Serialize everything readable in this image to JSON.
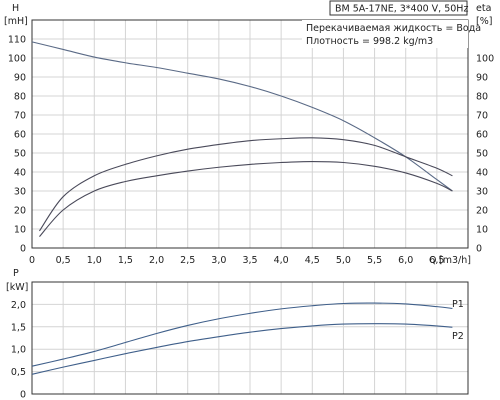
{
  "chart_data": [
    {
      "type": "line",
      "title": "BM 5A-17NE, 3*400 V, 50Hz",
      "info": [
        "Перекачиваемая жидкость = Вода",
        "Плотность = 998.2 kg/m3"
      ],
      "left_axis": {
        "name": "H",
        "unit": "[mH]",
        "ylim": [
          0,
          120
        ],
        "ticks": [
          0,
          10,
          20,
          30,
          40,
          50,
          60,
          70,
          80,
          90,
          100,
          110
        ]
      },
      "right_axis": {
        "name": "eta",
        "unit": "[%]",
        "ylim": [
          0,
          120
        ],
        "ticks": [
          0,
          10,
          20,
          30,
          40,
          50,
          60,
          70,
          80,
          90,
          100
        ]
      },
      "x_axis": {
        "name": "Q",
        "unit": "[m3/h]",
        "xlim": [
          0,
          7.0
        ],
        "tick_values": [
          0,
          0.5,
          1.0,
          1.5,
          2.0,
          2.5,
          3.0,
          3.5,
          4.0,
          4.5,
          5.0,
          5.5,
          6.0,
          6.5
        ],
        "tick_labels": [
          "0",
          "0,5",
          "1,0",
          "1,5",
          "2,0",
          "2,5",
          "3,0",
          "3,5",
          "4,0",
          "4,5",
          "5,0",
          "5,5",
          "6,0",
          "6,5"
        ]
      },
      "grid": true,
      "series": [
        {
          "id": "head",
          "color": "#5a6a86",
          "x": [
            0,
            0.5,
            1.0,
            1.5,
            2.0,
            2.5,
            3.0,
            3.5,
            4.0,
            4.5,
            5.0,
            5.5,
            6.0,
            6.5,
            6.75
          ],
          "y": [
            108.5,
            104.5,
            100.5,
            97.5,
            95,
            92,
            89,
            85,
            80,
            74,
            67,
            58,
            48,
            36,
            30
          ]
        },
        {
          "id": "eta-upper",
          "color": "#4a4a5a",
          "x": [
            0.12,
            0.5,
            1.0,
            1.5,
            2.0,
            2.5,
            3.0,
            3.5,
            4.0,
            4.5,
            5.0,
            5.5,
            6.0,
            6.5,
            6.75
          ],
          "y": [
            9,
            27,
            38,
            44,
            48.5,
            52,
            54.5,
            56.5,
            57.5,
            58,
            57,
            54,
            48,
            42,
            38
          ]
        },
        {
          "id": "eta-lower",
          "color": "#4a4a5a",
          "x": [
            0.12,
            0.5,
            1.0,
            1.5,
            2.0,
            2.5,
            3.0,
            3.5,
            4.0,
            4.5,
            5.0,
            5.5,
            6.0,
            6.5,
            6.75
          ],
          "y": [
            6,
            20,
            30,
            35,
            38,
            40.5,
            42.5,
            44,
            45,
            45.5,
            45,
            43,
            39.5,
            34,
            30
          ]
        }
      ]
    },
    {
      "type": "line",
      "left_axis": {
        "name": "P",
        "unit": "[kW]",
        "ylim": [
          0,
          2.5
        ],
        "tick_values": [
          0,
          0.5,
          1.0,
          1.5,
          2.0
        ],
        "tick_labels": [
          "0",
          "0,5",
          "1,0",
          "1,5",
          "2,0"
        ]
      },
      "x_axis": {
        "xlim": [
          0,
          7.0
        ]
      },
      "grid": true,
      "series": [
        {
          "name": "P1",
          "color": "#3f5f8a",
          "x": [
            0,
            0.5,
            1.0,
            1.5,
            2.0,
            2.5,
            3.0,
            3.5,
            4.0,
            4.5,
            5.0,
            5.5,
            6.0,
            6.5,
            6.75
          ],
          "y": [
            0.62,
            0.78,
            0.95,
            1.15,
            1.35,
            1.53,
            1.68,
            1.8,
            1.9,
            1.97,
            2.02,
            2.03,
            2.01,
            1.95,
            1.91
          ]
        },
        {
          "name": "P2",
          "color": "#3f5f8a",
          "x": [
            0,
            0.5,
            1.0,
            1.5,
            2.0,
            2.5,
            3.0,
            3.5,
            4.0,
            4.5,
            5.0,
            5.5,
            6.0,
            6.5,
            6.75
          ],
          "y": [
            0.44,
            0.6,
            0.75,
            0.9,
            1.04,
            1.17,
            1.28,
            1.38,
            1.46,
            1.52,
            1.56,
            1.57,
            1.56,
            1.52,
            1.49
          ]
        }
      ]
    }
  ]
}
